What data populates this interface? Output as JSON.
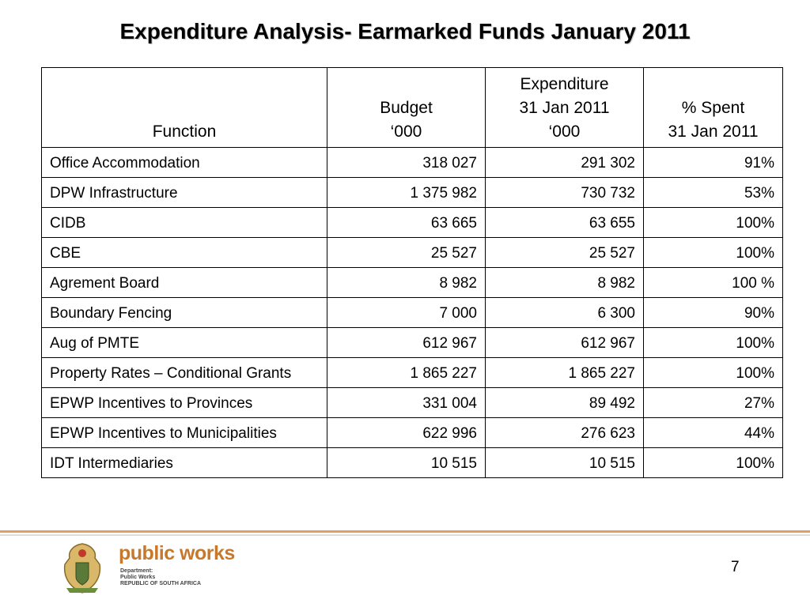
{
  "title": "Expenditure Analysis- Earmarked Funds January 2011",
  "table": {
    "header": [
      [
        "Function"
      ],
      [
        "Budget",
        "‘000"
      ],
      [
        "Expenditure",
        "31 Jan 2011",
        "‘000"
      ],
      [
        "% Spent",
        "31 Jan 2011"
      ]
    ],
    "rows": [
      [
        "Office Accommodation",
        "318 027",
        "291 302",
        "91%"
      ],
      [
        "DPW Infrastructure",
        "1 375 982",
        "730 732",
        "53%"
      ],
      [
        "CIDB",
        "63 665",
        "63 655",
        "100%"
      ],
      [
        "CBE",
        "25 527",
        "25 527",
        "100%"
      ],
      [
        "Agrement Board",
        "8 982",
        "8 982",
        "100 %"
      ],
      [
        "Boundary Fencing",
        "7 000",
        "6 300",
        "90%"
      ],
      [
        "Aug of PMTE",
        "612 967",
        "612 967",
        "100%"
      ],
      [
        "Property Rates – Conditional Grants",
        "1 865 227",
        "1 865 227",
        "100%"
      ],
      [
        "EPWP Incentives to Provinces",
        "331 004",
        "89 492",
        "27%"
      ],
      [
        "EPWP Incentives to Municipalities",
        "622 996",
        "276 623",
        "44%"
      ],
      [
        "IDT Intermediaries",
        "10 515",
        "10 515",
        "100%"
      ]
    ]
  },
  "footer": {
    "brand": "public works",
    "lines": [
      "Department:",
      "Public Works",
      "REPUBLIC OF SOUTH AFRICA"
    ],
    "page": "7"
  }
}
